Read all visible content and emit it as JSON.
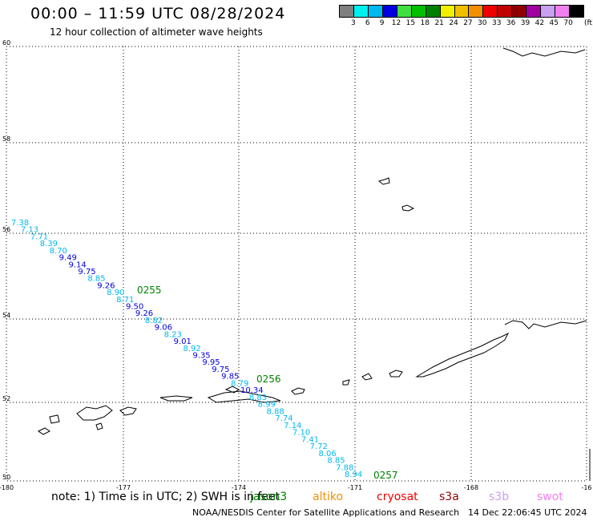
{
  "title": "00:00 – 11:59 UTC 08/28/2024",
  "subtitle": "12 hour collection of altimeter wave heights",
  "scale": {
    "unit": "(ft)",
    "ticks": [
      "3",
      "6",
      "9",
      "12",
      "15",
      "18",
      "21",
      "24",
      "27",
      "30",
      "33",
      "36",
      "39",
      "42",
      "45",
      "70"
    ],
    "colors": [
      "#808080",
      "#00f0f0",
      "#00b8f0",
      "#0000e0",
      "#40e040",
      "#00c000",
      "#008000",
      "#f0f000",
      "#f0c000",
      "#f09000",
      "#f00000",
      "#c00000",
      "#900000",
      "#a000a0",
      "#c8a0f0",
      "#f080f0",
      "#000000"
    ]
  },
  "map": {
    "lat_labels": [
      "60",
      "58",
      "56",
      "54",
      "52",
      "50"
    ],
    "lon_labels": [
      "-180",
      "-177",
      "-174",
      "-171",
      "-168",
      "-16"
    ],
    "track_labels": [
      "0255",
      "0256",
      "0257"
    ],
    "track_label_color": "#008000",
    "wave_heights_ft": [
      "7.38",
      "7.13",
      "7.71",
      "8.39",
      "8.70",
      "9.49",
      "9.14",
      "9.75",
      "8.85",
      "9.26",
      "8.90",
      "8.71",
      "9.50",
      "9.26",
      "8.82",
      "9.06",
      "8.23",
      "9.01",
      "8.92",
      "9.35",
      "9.95",
      "9.75",
      "9.85",
      "8.79",
      "10.34",
      "8.83",
      "8.99",
      "8.88",
      "7.74",
      "7.14",
      "7.10",
      "7.41",
      "7.72",
      "8.06",
      "8.85",
      "7.88",
      "8.94"
    ]
  },
  "notes": {
    "prefix": "note:  1) Time is in UTC; 2) SWH is in feet",
    "satellites": [
      {
        "name": "jason3",
        "color": "#008000"
      },
      {
        "name": "altiko",
        "color": "#f09000"
      },
      {
        "name": "cryosat",
        "color": "#f00000"
      },
      {
        "name": "s3a",
        "color": "#900000"
      },
      {
        "name": "s3b",
        "color": "#c8a0f0"
      },
      {
        "name": "swot",
        "color": "#f080f0"
      }
    ]
  },
  "credit": "NOAA/NESDIS Center for Satellite Applications and Research",
  "timestamp": "14 Dec 22:06:45 UTC 2024"
}
